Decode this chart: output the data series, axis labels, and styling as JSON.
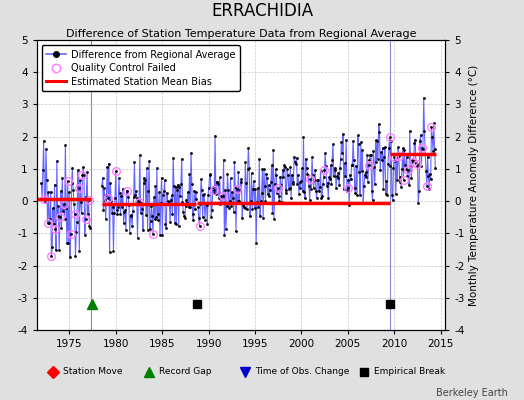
{
  "title": "ERRACHIDIA",
  "subtitle": "Difference of Station Temperature Data from Regional Average",
  "ylabel": "Monthly Temperature Anomaly Difference (°C)",
  "xlabel_years": [
    1975,
    1980,
    1985,
    1990,
    1995,
    2000,
    2005,
    2010,
    2015
  ],
  "ylim": [
    -4,
    5
  ],
  "yticks": [
    -4,
    -3,
    -2,
    -1,
    0,
    1,
    2,
    3,
    4,
    5
  ],
  "xlim": [
    1971.5,
    2015.5
  ],
  "background_color": "#e0e0e0",
  "plot_bg_color": "#ffffff",
  "line_color": "#6666ff",
  "marker_color": "#000000",
  "qc_color": "#ff80ff",
  "bias_color": "#ff0000",
  "grid_color": "#b0b0b0",
  "station_move_color": "#ff0000",
  "record_gap_color": "#008000",
  "tobs_color": "#0000cc",
  "emp_break_color": "#000000",
  "segment_biases": [
    {
      "x_start": 1971.5,
      "x_end": 1977.3,
      "bias": 0.08
    },
    {
      "x_start": 1978.5,
      "x_end": 1988.7,
      "bias": -0.08
    },
    {
      "x_start": 1988.8,
      "x_end": 2009.5,
      "bias": -0.05
    },
    {
      "x_start": 2009.5,
      "x_end": 2014.5,
      "bias": 1.45
    }
  ],
  "vline_x1": 1977.3,
  "vline_x2": 2009.5,
  "record_gap_x": 1977.5,
  "emp_break_x1": 1988.8,
  "emp_break_x2": 2009.5,
  "event_y": -3.2,
  "berkeley_earth_text": "Berkeley Earth",
  "seed": 42,
  "seg1_start": 1972.0,
  "seg1_end": 1977.3,
  "seg2_start": 1978.5,
  "seg2_end": 1988.7,
  "seg3_start": 1988.8,
  "seg3_end": 2014.5
}
